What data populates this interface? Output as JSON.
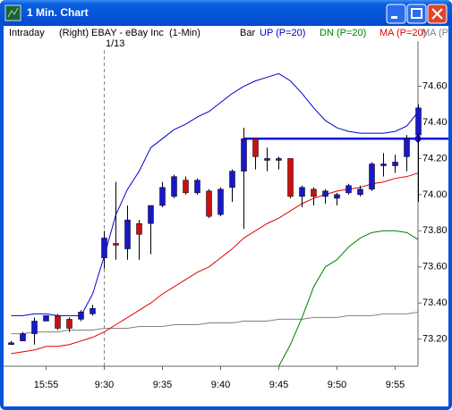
{
  "window": {
    "title": "1 Min. Chart"
  },
  "chart_data": {
    "type": "candlestick",
    "header": {
      "mode": "Intraday",
      "axis_side": "(Right)",
      "symbol": "EBAY - eBay Inc  (1-Min)",
      "style": "Bar"
    },
    "day_break_label": "1/13",
    "categories": [
      null,
      null,
      null,
      "15:55",
      null,
      null,
      null,
      null,
      "9:30",
      null,
      null,
      null,
      null,
      "9:35",
      null,
      null,
      null,
      null,
      "9:40",
      null,
      null,
      null,
      null,
      "9:45",
      null,
      null,
      null,
      null,
      "9:50",
      null,
      null,
      null,
      null,
      "9:55",
      null,
      null
    ],
    "open": [
      73.17,
      73.19,
      73.23,
      73.3,
      73.33,
      73.31,
      73.31,
      73.34,
      73.65,
      73.73,
      73.7,
      73.84,
      73.84,
      73.94,
      73.99,
      74.08,
      74.01,
      74.02,
      73.89,
      74.04,
      74.13,
      74.31,
      74.19,
      74.19,
      74.2,
      73.99,
      74.03,
      73.99,
      73.98,
      74.01,
      74.0,
      74.03,
      74.16,
      74.16,
      74.21,
      74.33
    ],
    "high": [
      73.19,
      73.24,
      73.32,
      73.33,
      73.34,
      73.32,
      73.36,
      73.39,
      73.8,
      74.07,
      73.94,
      73.86,
      73.94,
      74.07,
      74.11,
      74.1,
      74.09,
      74.03,
      74.04,
      74.14,
      74.37,
      74.31,
      74.26,
      74.21,
      74.2,
      74.05,
      74.04,
      74.03,
      74.01,
      74.06,
      74.05,
      74.18,
      74.23,
      74.22,
      74.33,
      74.5
    ],
    "low": [
      73.17,
      73.19,
      73.17,
      73.3,
      73.25,
      73.24,
      73.3,
      73.33,
      73.59,
      73.64,
      73.64,
      73.64,
      73.67,
      73.93,
      73.98,
      74.0,
      74.0,
      73.87,
      73.88,
      73.96,
      73.81,
      74.14,
      74.13,
      74.14,
      73.98,
      73.93,
      73.94,
      73.95,
      73.94,
      74.0,
      73.99,
      74.02,
      74.1,
      74.12,
      74.13,
      73.96
    ],
    "close": [
      73.18,
      73.23,
      73.3,
      73.33,
      73.26,
      73.26,
      73.35,
      73.37,
      73.76,
      73.72,
      73.86,
      73.78,
      73.94,
      74.04,
      74.1,
      74.01,
      74.08,
      73.88,
      74.03,
      74.13,
      74.31,
      74.21,
      74.2,
      74.2,
      73.99,
      74.04,
      73.99,
      74.02,
      74.0,
      74.05,
      74.03,
      74.17,
      74.17,
      74.18,
      74.31,
      74.48
    ],
    "up_color": "#1818c8",
    "down_color": "#c81010",
    "series": [
      {
        "name": "UP (P=20)",
        "color": "#0000cc",
        "values": [
          73.33,
          73.33,
          73.34,
          73.34,
          73.33,
          73.33,
          73.33,
          73.45,
          73.66,
          73.89,
          74.03,
          74.13,
          74.26,
          74.31,
          74.36,
          74.39,
          74.43,
          74.46,
          74.51,
          74.56,
          74.6,
          74.63,
          74.65,
          74.67,
          74.63,
          74.56,
          74.48,
          74.41,
          74.37,
          74.35,
          74.34,
          74.34,
          74.34,
          74.35,
          74.38,
          74.46
        ]
      },
      {
        "name": "DN (P=20)",
        "color": "#008000",
        "values": [
          null,
          null,
          null,
          null,
          null,
          null,
          null,
          null,
          null,
          null,
          null,
          null,
          null,
          null,
          null,
          null,
          null,
          null,
          null,
          null,
          null,
          null,
          null,
          73.05,
          73.17,
          73.32,
          73.49,
          73.6,
          73.64,
          73.71,
          73.76,
          73.79,
          73.8,
          73.8,
          73.79,
          73.75
        ]
      },
      {
        "name": "MA (P=20)",
        "color": "#e00000",
        "values": [
          73.12,
          73.13,
          73.14,
          73.16,
          73.16,
          73.17,
          73.19,
          73.21,
          73.24,
          73.28,
          73.32,
          73.36,
          73.4,
          73.45,
          73.49,
          73.53,
          73.57,
          73.6,
          73.65,
          73.7,
          73.76,
          73.8,
          73.84,
          73.87,
          73.91,
          73.95,
          73.98,
          74.0,
          74.02,
          74.03,
          74.04,
          74.06,
          74.07,
          74.09,
          74.1,
          74.12
        ]
      },
      {
        "name": "MA (P=",
        "color": "#808080",
        "values": [
          73.23,
          73.23,
          73.24,
          73.24,
          73.24,
          73.25,
          73.25,
          73.25,
          73.26,
          73.26,
          73.26,
          73.27,
          73.27,
          73.27,
          73.28,
          73.28,
          73.28,
          73.29,
          73.29,
          73.29,
          73.3,
          73.3,
          73.3,
          73.31,
          73.31,
          73.31,
          73.32,
          73.32,
          73.32,
          73.33,
          73.33,
          73.33,
          73.34,
          73.34,
          73.34,
          73.35
        ]
      }
    ],
    "reference_line": {
      "value": 74.31,
      "color": "#1010e8"
    },
    "ylim": [
      73.05,
      74.85
    ],
    "yticks": [
      {
        "value": 73.2,
        "label": "73.20"
      },
      {
        "value": 73.4,
        "label": "73.40"
      },
      {
        "value": 73.6,
        "label": "73.60"
      },
      {
        "value": 73.8,
        "label": "73.80"
      },
      {
        "value": 74,
        "label": "74.00"
      },
      {
        "value": 74.2,
        "label": "74.20"
      },
      {
        "value": 74.4,
        "label": "74.40"
      },
      {
        "value": 74.6,
        "label": "74.60"
      }
    ]
  }
}
